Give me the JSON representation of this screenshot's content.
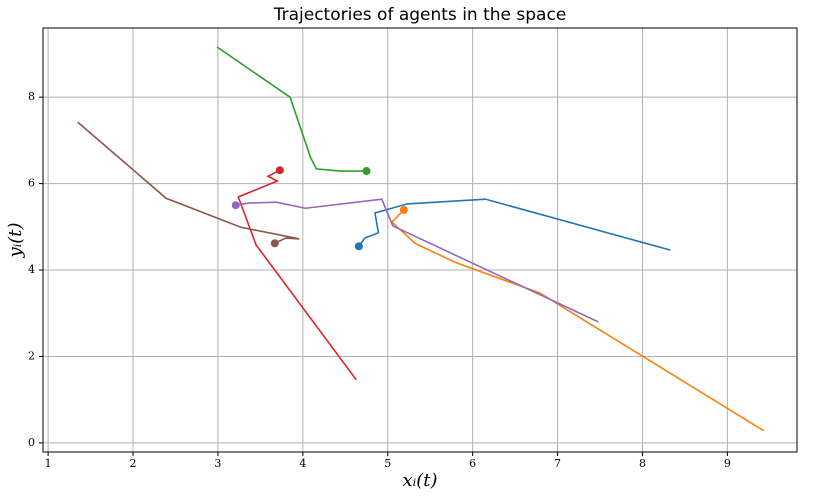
{
  "chart_data": {
    "type": "line",
    "title": "Trajectories of agents in the space",
    "x_label": "xᵢ(t)",
    "y_label": "yᵢ(t)",
    "xlim": [
      0.94,
      9.82
    ],
    "ylim": [
      -0.21,
      9.6
    ],
    "xticks": [
      1,
      2,
      3,
      4,
      5,
      6,
      7,
      8,
      9
    ],
    "yticks": [
      0,
      2,
      4,
      6,
      8
    ],
    "grid": true,
    "series": [
      {
        "color": "#1f77b4",
        "x": [
          4.66,
          4.73,
          4.89,
          4.85,
          5.23,
          6.15,
          8.33
        ],
        "y": [
          4.55,
          4.74,
          4.86,
          5.32,
          5.53,
          5.64,
          4.46
        ]
      },
      {
        "color": "#ff7f0e",
        "x": [
          5.19,
          5.05,
          5.32,
          5.79,
          6.79,
          9.43
        ],
        "y": [
          5.39,
          5.11,
          4.62,
          4.18,
          3.47,
          0.28
        ]
      },
      {
        "color": "#2ca02c",
        "x": [
          4.75,
          4.44,
          4.16,
          4.09,
          3.85,
          2.99
        ],
        "y": [
          6.29,
          6.29,
          6.34,
          6.61,
          8.0,
          9.16
        ]
      },
      {
        "color": "#d62728",
        "x": [
          3.73,
          3.59,
          3.7,
          3.24,
          3.45,
          4.63
        ],
        "y": [
          6.31,
          6.17,
          6.06,
          5.69,
          4.58,
          1.46
        ]
      },
      {
        "color": "#9467bd",
        "x": [
          3.21,
          3.36,
          3.69,
          4.03,
          4.93,
          5.06,
          7.48
        ],
        "y": [
          5.5,
          5.55,
          5.57,
          5.43,
          5.64,
          5.02,
          2.8
        ]
      },
      {
        "color": "#8c564b",
        "x": [
          3.67,
          3.8,
          3.96,
          3.27,
          2.39,
          1.35
        ],
        "y": [
          4.62,
          4.74,
          4.72,
          4.99,
          5.66,
          7.42
        ]
      }
    ]
  }
}
